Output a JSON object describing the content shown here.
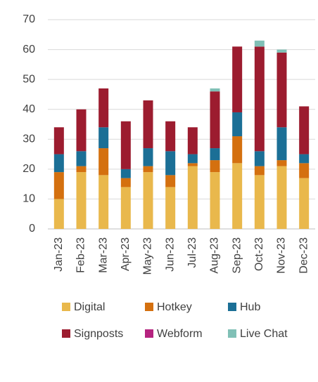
{
  "chart_data": {
    "type": "stacked_bar",
    "categories": [
      "Jan-23",
      "Feb-23",
      "Mar-23",
      "Apr-23",
      "May-23",
      "Jun-23",
      "Jul-23",
      "Aug-23",
      "Sep-23",
      "Oct-23",
      "Nov-23",
      "Dec-23"
    ],
    "series": [
      {
        "name": "Digital",
        "color": "#e9b84c",
        "values": [
          10,
          19,
          18,
          14,
          19,
          14,
          21,
          19,
          22,
          18,
          21,
          17
        ]
      },
      {
        "name": "Hotkey",
        "color": "#d4700f",
        "values": [
          9,
          2,
          9,
          3,
          2,
          4,
          1,
          4,
          9,
          3,
          2,
          5
        ]
      },
      {
        "name": "Hub",
        "color": "#1b6f96",
        "values": [
          6,
          5,
          7,
          3,
          6,
          8,
          3,
          4,
          8,
          5,
          11,
          3
        ]
      },
      {
        "name": "Signposts",
        "color": "#9c1c2f",
        "values": [
          9,
          14,
          13,
          16,
          16,
          10,
          9,
          19,
          22,
          35,
          25,
          16
        ]
      },
      {
        "name": "Webform",
        "color": "#b5237f",
        "values": [
          0,
          0,
          0,
          0,
          0,
          0,
          0,
          0,
          0,
          0,
          0,
          0
        ]
      },
      {
        "name": "Live Chat",
        "color": "#80c0b6",
        "values": [
          0,
          0,
          0,
          0,
          0,
          0,
          0,
          1,
          0,
          2,
          1,
          0
        ]
      }
    ],
    "ylim": [
      0,
      70
    ],
    "yticks": [
      0,
      10,
      20,
      30,
      40,
      50,
      60,
      70
    ],
    "grid": true
  }
}
